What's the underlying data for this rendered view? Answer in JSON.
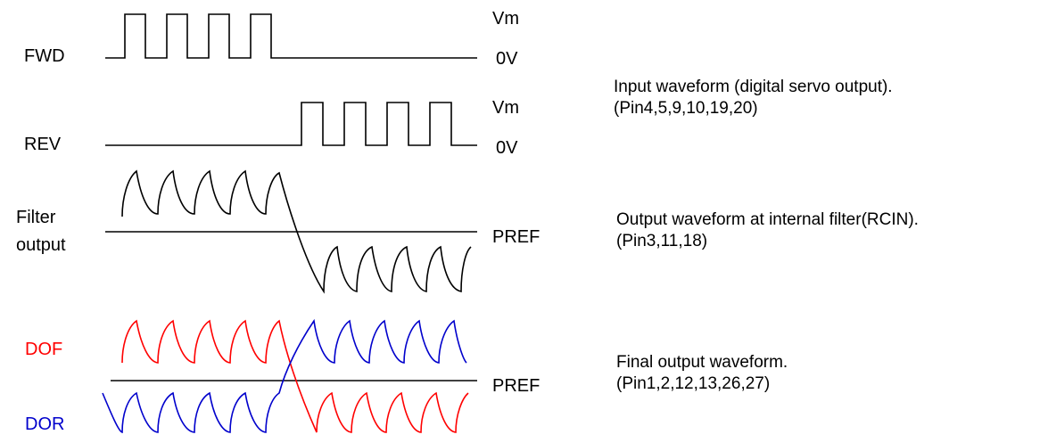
{
  "signals": {
    "fwd": "FWD",
    "rev": "REV",
    "filter_line1": "Filter",
    "filter_line2": "output",
    "dof": "DOF",
    "dor": "DOR"
  },
  "levels": {
    "fwd_high": "Vm",
    "fwd_low": "0V",
    "rev_high": "Vm",
    "rev_low": "0V",
    "filter_ref": "PREF",
    "final_ref": "PREF"
  },
  "notes": {
    "input_line1": "Input waveform (digital servo output).",
    "input_line2": "(Pin4,5,9,10,19,20)",
    "filter_line1": "Output waveform at internal filter(RCIN).",
    "filter_line2": "(Pin3,11,18)",
    "final_line1": "Final output waveform.",
    "final_line2": "(Pin1,2,12,13,26,27)"
  },
  "colors": {
    "trace": "#000000",
    "dof": "#ff0000",
    "dor": "#0000cc"
  }
}
